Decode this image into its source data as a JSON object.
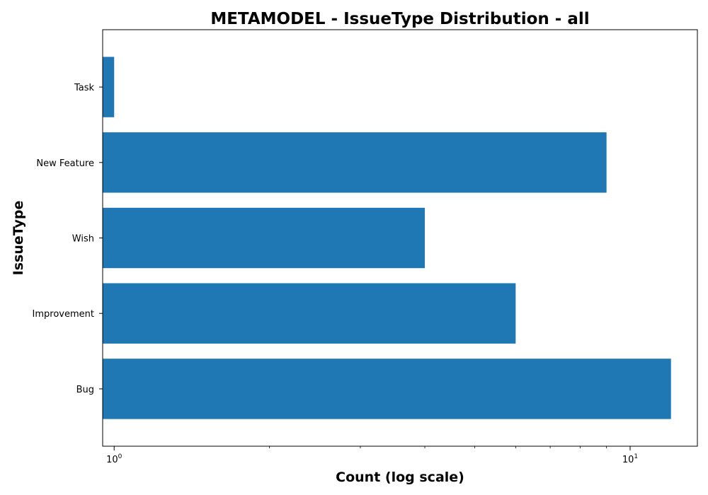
{
  "chart_data": {
    "type": "bar",
    "orientation": "horizontal",
    "title": "METAMODEL - IssueType Distribution - all",
    "xlabel": "Count (log scale)",
    "ylabel": "IssueType",
    "x_scale": "log",
    "xlim": [
      0.95,
      13.5
    ],
    "x_ticks": [
      {
        "value": 1,
        "base": "10",
        "exp": "0"
      },
      {
        "value": 10,
        "base": "10",
        "exp": "1"
      }
    ],
    "categories": [
      "Bug",
      "Improvement",
      "Wish",
      "New Feature",
      "Task"
    ],
    "values": [
      12,
      6,
      4,
      9,
      1
    ],
    "bar_color": "#1f77b4",
    "grid": false,
    "legend": "none"
  }
}
